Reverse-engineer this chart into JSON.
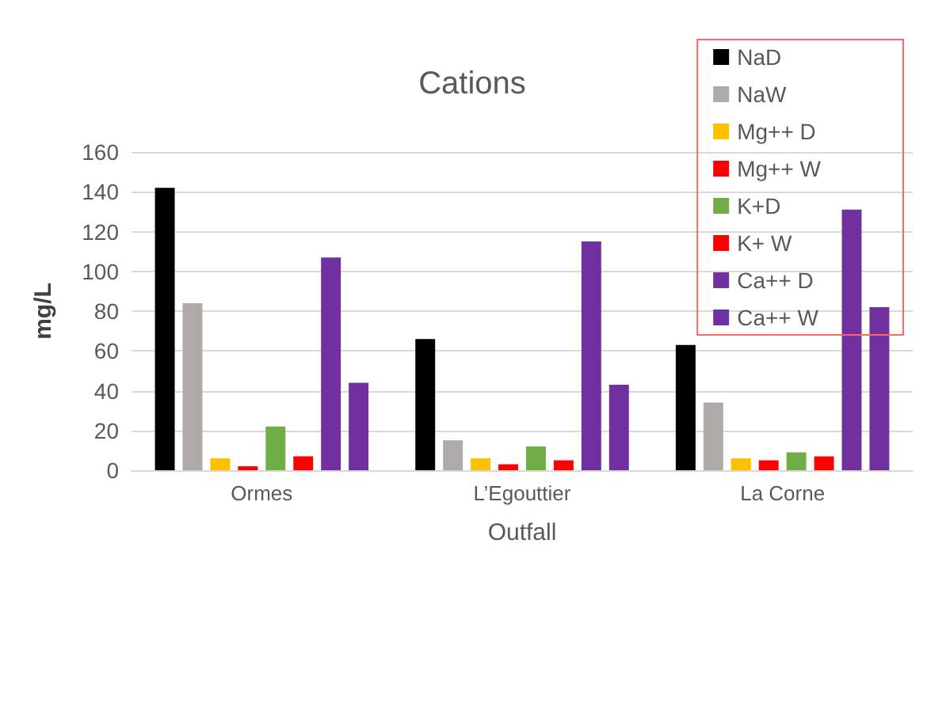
{
  "chart_data": {
    "type": "bar",
    "title": "Cations",
    "xlabel": "Outfall",
    "ylabel": "mg/L",
    "categories": [
      "Ormes",
      "L’Egouttier",
      "La Corne"
    ],
    "series": [
      {
        "name": "NaD",
        "color": "#000000",
        "values": [
          142,
          66,
          63
        ]
      },
      {
        "name": "NaW",
        "color": "#aeaaaa",
        "values": [
          84,
          15,
          34
        ]
      },
      {
        "name": "Mg++ D",
        "color": "#ffc000",
        "values": [
          6,
          6,
          6
        ]
      },
      {
        "name": "Mg++ W",
        "color": "#ff0000",
        "values": [
          2,
          3,
          5
        ]
      },
      {
        "name": "K+D",
        "color": "#70ad47",
        "values": [
          22,
          12,
          9
        ]
      },
      {
        "name": "K+ W",
        "color": "#ff0000",
        "values": [
          7,
          5,
          7
        ]
      },
      {
        "name": "Ca++ D",
        "color": "#7030a0",
        "values": [
          107,
          115,
          131
        ]
      },
      {
        "name": "Ca++ W",
        "color": "#7030a0",
        "values": [
          44,
          43,
          82
        ]
      }
    ],
    "ylim": [
      0,
      160
    ],
    "yticks": [
      0,
      20,
      40,
      60,
      80,
      100,
      120,
      140,
      160
    ],
    "grid": "y",
    "legend": "top right"
  }
}
